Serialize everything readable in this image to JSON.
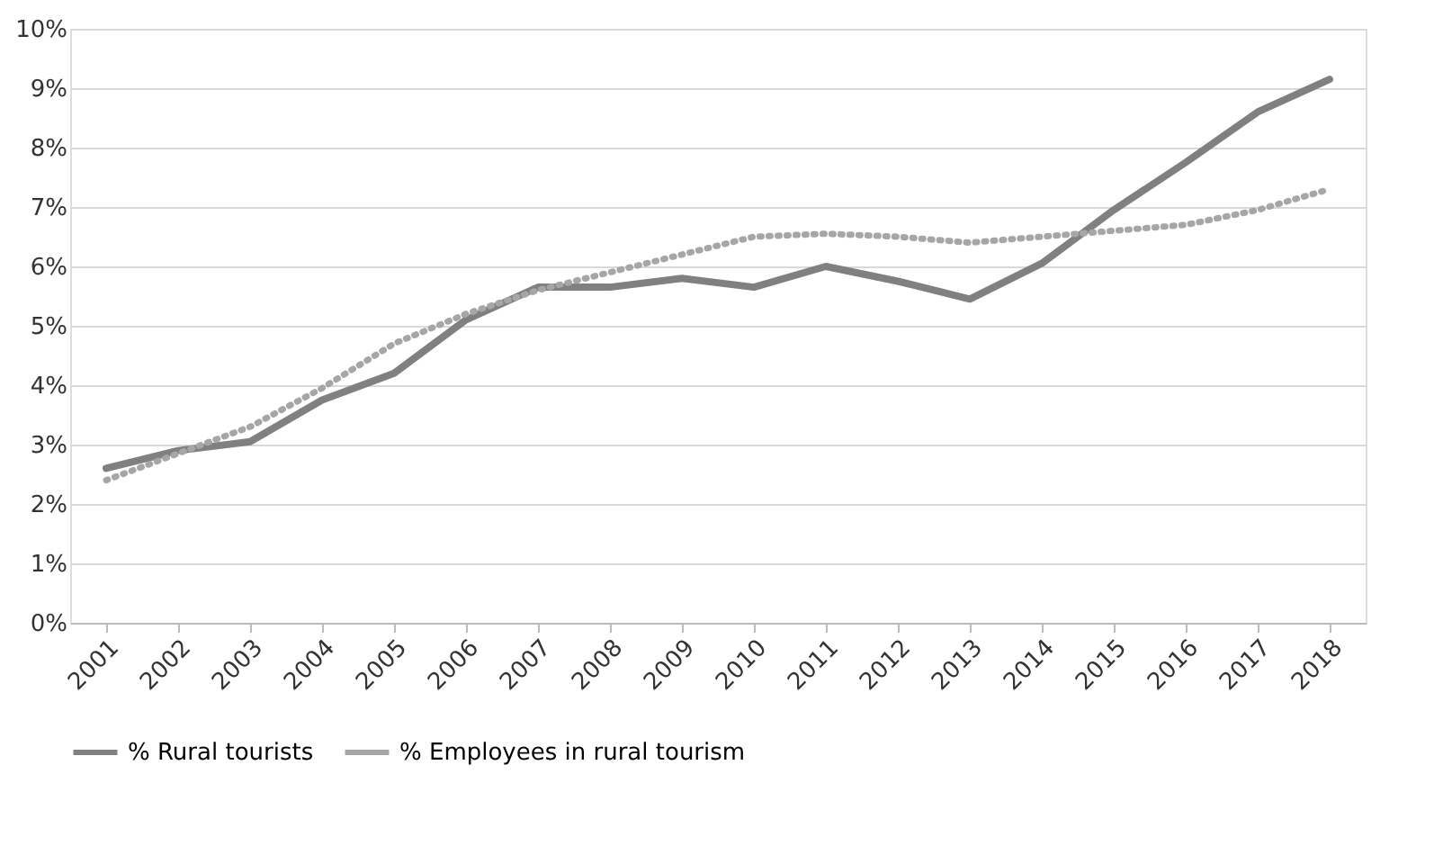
{
  "chart_data": {
    "type": "line",
    "categories": [
      "2001",
      "2002",
      "2003",
      "2004",
      "2005",
      "2006",
      "2007",
      "2008",
      "2009",
      "2010",
      "2011",
      "2012",
      "2013",
      "2014",
      "2015",
      "2016",
      "2017",
      "2018"
    ],
    "series": [
      {
        "name": "% Rural tourists",
        "color": "#808080",
        "line_style": "solid",
        "values": [
          2.6,
          2.9,
          3.05,
          3.75,
          4.2,
          5.1,
          5.65,
          5.65,
          5.8,
          5.65,
          6.0,
          5.75,
          5.45,
          6.05,
          6.95,
          7.75,
          8.6,
          9.15
        ]
      },
      {
        "name": "% Employees in rural tourism",
        "color": "#a6a6a6",
        "line_style": "dotted",
        "values": [
          2.4,
          2.85,
          3.3,
          3.95,
          4.7,
          5.2,
          5.6,
          5.9,
          6.2,
          6.5,
          6.55,
          6.5,
          6.4,
          6.5,
          6.6,
          6.7,
          6.95,
          7.3
        ]
      }
    ],
    "ylim": [
      0,
      10
    ],
    "yticks": [
      {
        "value": 0,
        "label": "0%"
      },
      {
        "value": 1,
        "label": "1%"
      },
      {
        "value": 2,
        "label": "2%"
      },
      {
        "value": 3,
        "label": "3%"
      },
      {
        "value": 4,
        "label": "4%"
      },
      {
        "value": 5,
        "label": "5%"
      },
      {
        "value": 6,
        "label": "6%"
      },
      {
        "value": 7,
        "label": "7%"
      },
      {
        "value": 8,
        "label": "8%"
      },
      {
        "value": 9,
        "label": "9%"
      },
      {
        "value": 10,
        "label": "10%"
      }
    ],
    "grid": "y",
    "legend": "bottom",
    "marker": "none"
  }
}
